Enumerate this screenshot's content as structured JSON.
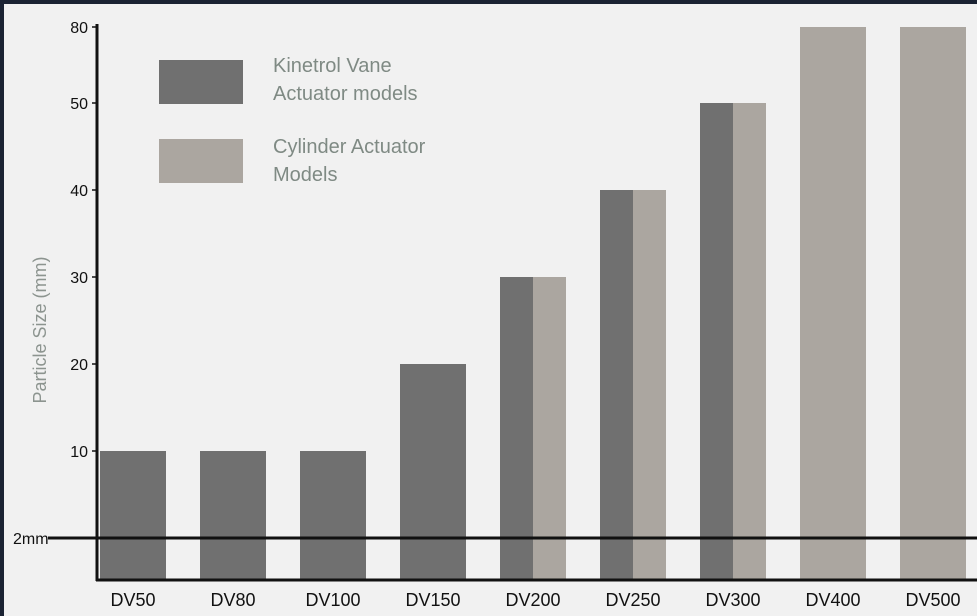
{
  "chart_data": {
    "type": "bar",
    "ylabel": "Particle Size (mm)",
    "categories": [
      "DV50",
      "DV80",
      "DV100",
      "DV150",
      "DV200",
      "DV250",
      "DV300",
      "DV400",
      "DV500"
    ],
    "series": [
      {
        "name": "Kinetrol Vane Actuator models",
        "color": "#707070",
        "values": [
          10,
          10,
          10,
          20,
          30,
          40,
          50,
          null,
          null
        ]
      },
      {
        "name": "Cylinder Actuator Models",
        "color": "#aba6a0",
        "values": [
          null,
          null,
          null,
          null,
          30,
          40,
          50,
          80,
          80
        ]
      }
    ],
    "y_ticks": [
      {
        "value": 2,
        "label": "2mm"
      },
      {
        "value": 10,
        "label": "10"
      },
      {
        "value": 20,
        "label": "20"
      },
      {
        "value": 30,
        "label": "30"
      },
      {
        "value": 40,
        "label": "40"
      },
      {
        "value": 50,
        "label": "50"
      },
      {
        "value": 80,
        "label": "80"
      }
    ],
    "reference_line": {
      "value": 2,
      "label": "2mm"
    },
    "legend": {
      "placement": "top-left",
      "entries": [
        {
          "lines": [
            "Kinetrol Vane",
            "Actuator models"
          ],
          "color": "#707070"
        },
        {
          "lines": [
            "Cylinder Actuator",
            "Models"
          ],
          "color": "#aba6a0"
        }
      ]
    },
    "grid": false
  }
}
